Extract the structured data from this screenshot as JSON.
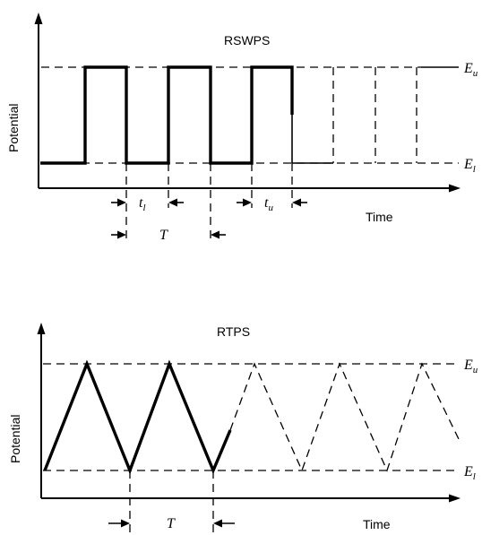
{
  "top_panel": {
    "title": "RSWPS",
    "ylabel": "Potential",
    "xlabel": "Time",
    "upper_level_label": "E",
    "upper_level_sub": "u",
    "lower_level_label": "E",
    "lower_level_sub": "l",
    "tl_label": "t",
    "tl_sub": "l",
    "tu_label": "t",
    "tu_sub": "u",
    "period_label": "T"
  },
  "bottom_panel": {
    "title": "RTPS",
    "ylabel": "Potential",
    "xlabel": "Time",
    "upper_level_label": "E",
    "upper_level_sub": "u",
    "lower_level_label": "E",
    "lower_level_sub": "l",
    "period_label": "T"
  }
}
